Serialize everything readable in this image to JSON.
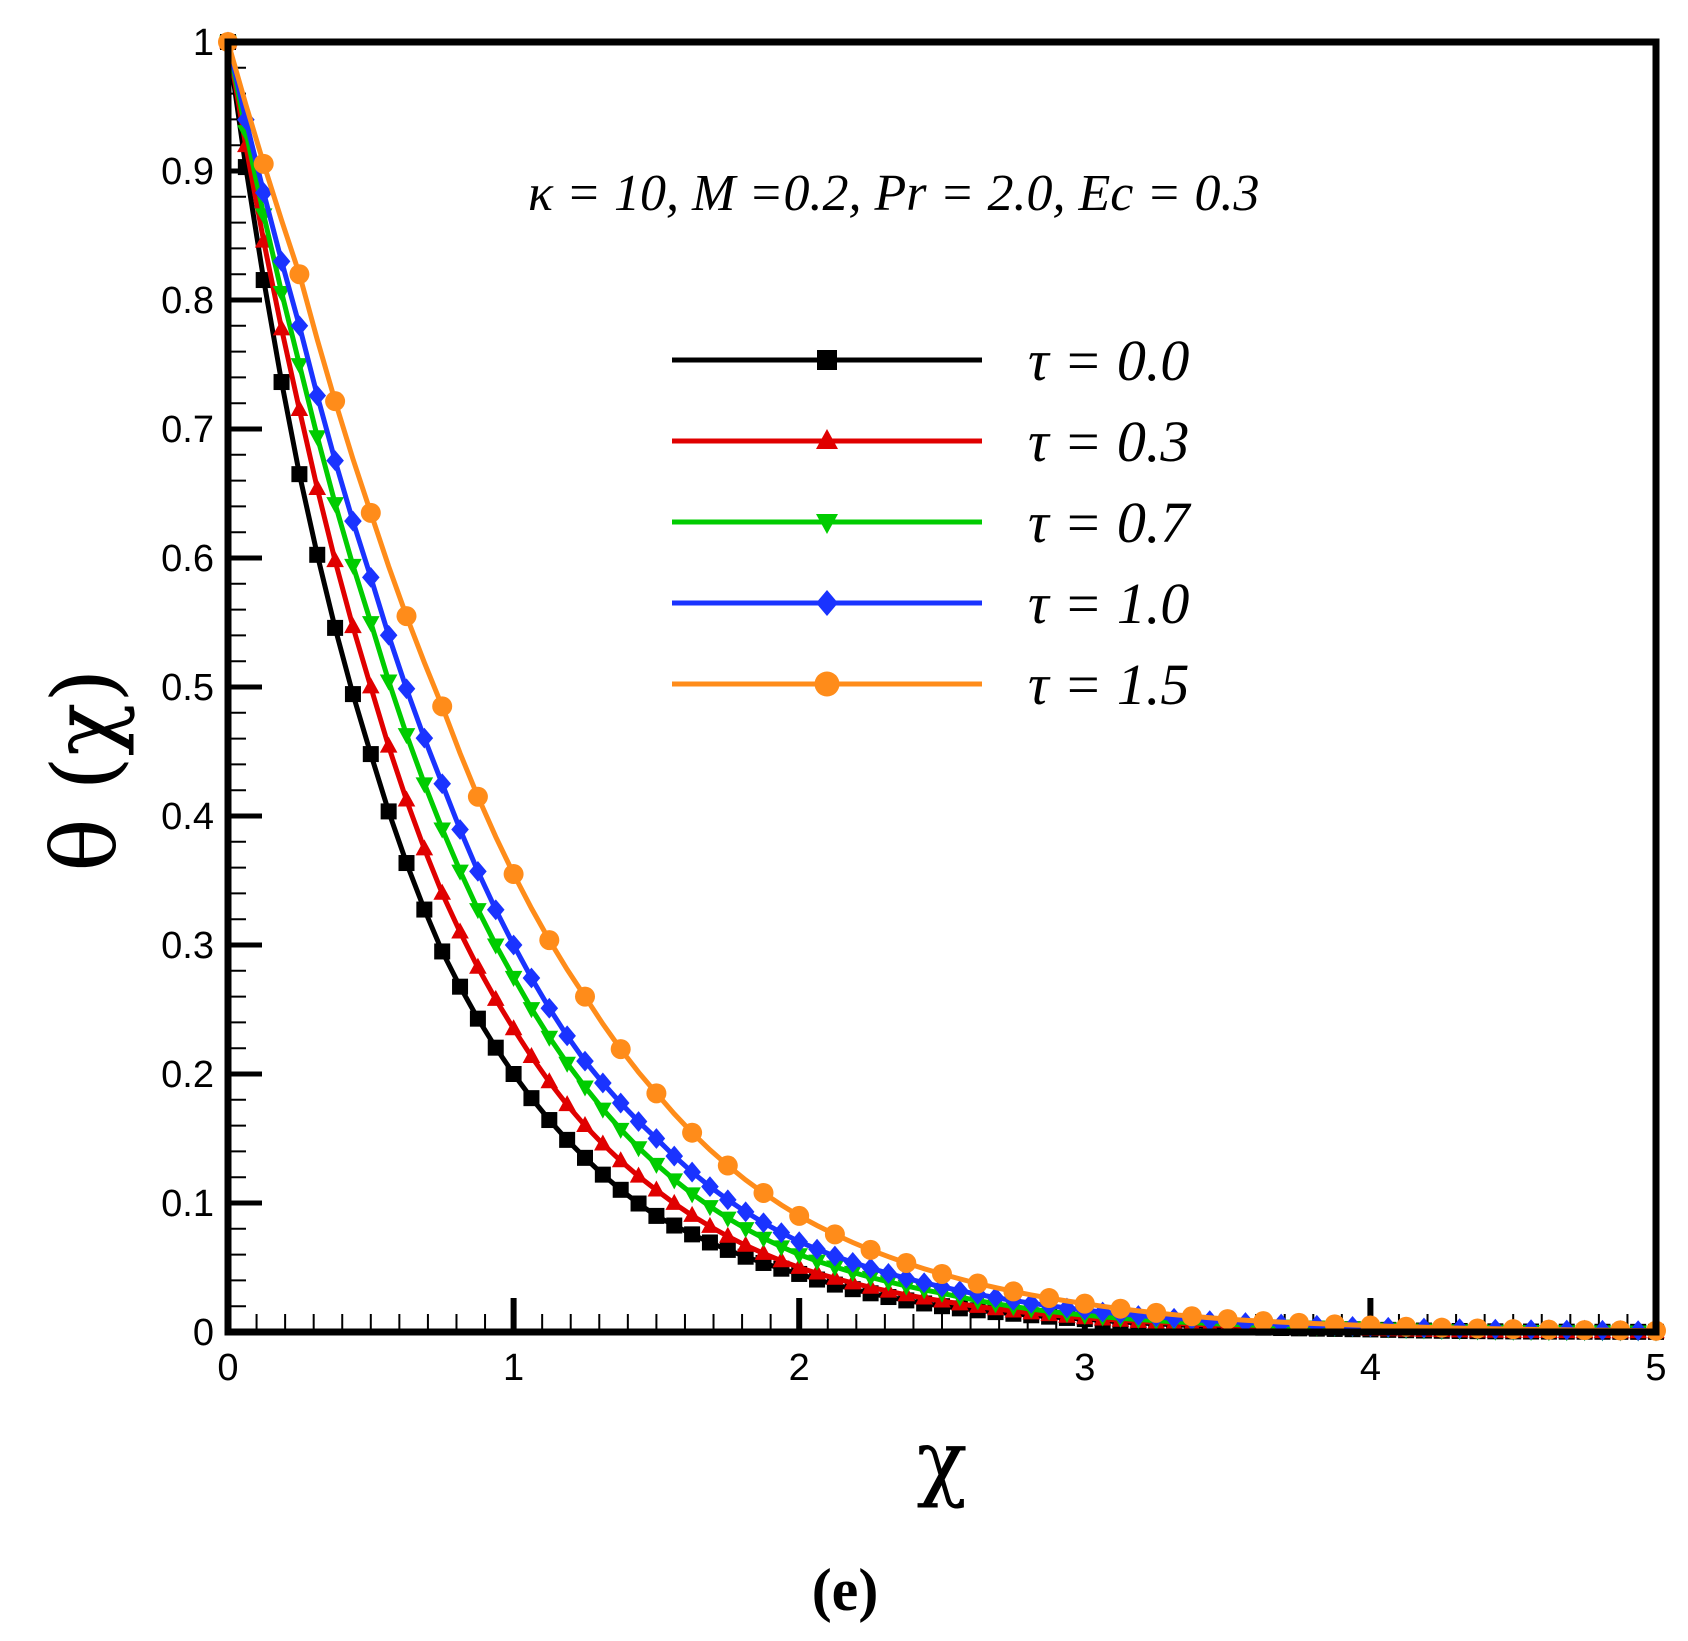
{
  "chart_data": {
    "type": "line",
    "title": "",
    "annotation": "κ = 10, M =0.2, Pr = 2.0, Ec = 0.3",
    "xlabel": "χ",
    "ylabel": "θ (χ)",
    "panel_label": "(e)",
    "xlim": [
      0,
      5
    ],
    "ylim": [
      0,
      1
    ],
    "x_ticks": [
      "0",
      "1",
      "2",
      "3",
      "4",
      "5"
    ],
    "y_ticks": [
      "0",
      "0.1",
      "0.2",
      "0.3",
      "0.4",
      "0.5",
      "0.6",
      "0.7",
      "0.8",
      "0.9",
      "1"
    ],
    "legend_position": "upper-center-right",
    "series": [
      {
        "name": "τ = 0.0",
        "tau": "0.0",
        "color": "#000000",
        "marker": "square",
        "x": [
          0,
          0.25,
          0.5,
          0.75,
          1.0,
          1.25,
          1.5,
          2.0,
          2.5,
          3.0,
          3.5,
          4.0,
          5.0
        ],
        "y": [
          1.0,
          0.665,
          0.448,
          0.295,
          0.2,
          0.135,
          0.09,
          0.045,
          0.02,
          0.01,
          0.004,
          0.002,
          0.0
        ]
      },
      {
        "name": "τ = 0.3",
        "tau": "0.3",
        "color": "#e00000",
        "marker": "triangle-up",
        "x": [
          0,
          0.25,
          0.5,
          0.75,
          1.0,
          1.25,
          1.5,
          2.0,
          2.5,
          3.0,
          3.5,
          4.0,
          5.0
        ],
        "y": [
          1.0,
          0.715,
          0.5,
          0.34,
          0.235,
          0.16,
          0.11,
          0.05,
          0.024,
          0.011,
          0.005,
          0.002,
          0.0
        ]
      },
      {
        "name": "τ = 0.7",
        "tau": "0.7",
        "color": "#00cc00",
        "marker": "triangle-down",
        "x": [
          0,
          0.25,
          0.5,
          0.75,
          1.0,
          1.25,
          1.5,
          2.0,
          2.5,
          3.0,
          3.5,
          4.0,
          5.0
        ],
        "y": [
          1.0,
          0.75,
          0.55,
          0.39,
          0.275,
          0.19,
          0.13,
          0.06,
          0.03,
          0.013,
          0.006,
          0.003,
          0.0
        ]
      },
      {
        "name": "τ = 1.0",
        "tau": "1.0",
        "color": "#1a33ff",
        "marker": "diamond",
        "x": [
          0,
          0.25,
          0.5,
          0.75,
          1.0,
          1.25,
          1.5,
          2.0,
          2.5,
          3.0,
          3.5,
          4.0,
          5.0
        ],
        "y": [
          1.0,
          0.78,
          0.585,
          0.425,
          0.3,
          0.21,
          0.15,
          0.07,
          0.035,
          0.017,
          0.008,
          0.004,
          0.001
        ]
      },
      {
        "name": "τ = 1.5",
        "tau": "1.5",
        "color": "#ff8c1a",
        "marker": "circle",
        "x": [
          0,
          0.25,
          0.5,
          0.75,
          1.0,
          1.25,
          1.5,
          2.0,
          2.5,
          3.0,
          3.5,
          4.0,
          5.0
        ],
        "y": [
          1.0,
          0.82,
          0.635,
          0.485,
          0.355,
          0.26,
          0.185,
          0.09,
          0.045,
          0.022,
          0.01,
          0.005,
          0.001
        ]
      }
    ]
  }
}
